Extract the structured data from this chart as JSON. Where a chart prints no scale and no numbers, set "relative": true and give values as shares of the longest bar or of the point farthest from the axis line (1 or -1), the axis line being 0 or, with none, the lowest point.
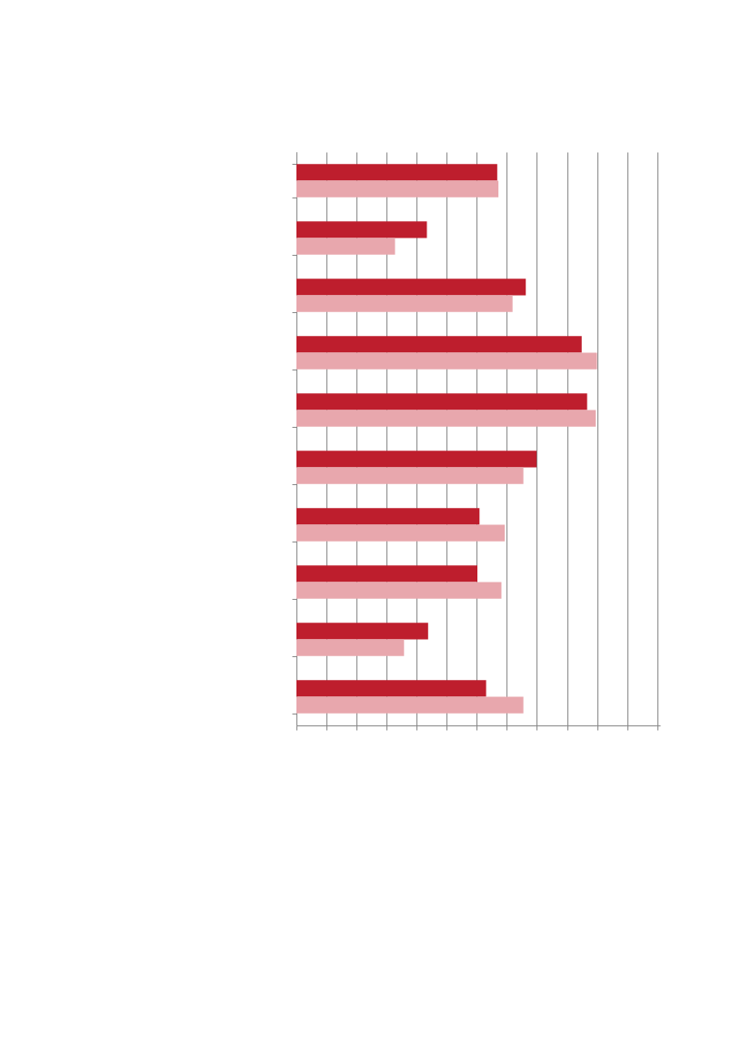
{
  "chart_data": {
    "type": "bar",
    "orientation": "horizontal",
    "relative": true,
    "grid": "x",
    "legend": false,
    "categories": [
      null,
      null,
      null,
      null,
      null,
      null,
      null,
      null,
      null,
      null
    ],
    "series": [
      {
        "color": "#be1e2d",
        "values": [
          0.668,
          0.434,
          0.763,
          0.949,
          0.967,
          0.799,
          0.609,
          0.602,
          0.438,
          0.631
        ]
      },
      {
        "color": "#e8a7ad",
        "values": [
          0.672,
          0.328,
          0.719,
          1,
          0.996,
          0.755,
          0.693,
          0.682,
          0.358,
          0.755
        ]
      }
    ]
  }
}
